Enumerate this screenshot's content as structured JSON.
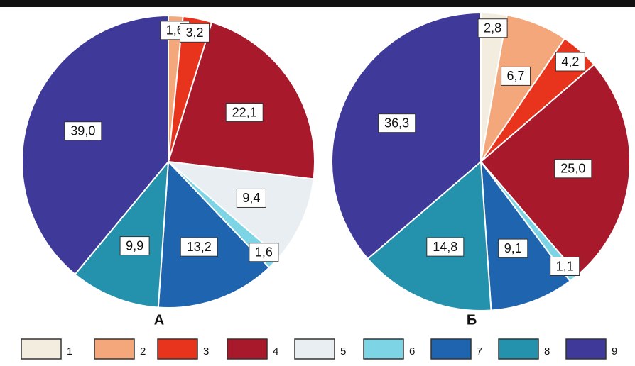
{
  "chart_data": [
    {
      "type": "pie",
      "title": "А",
      "values": [
        1.6,
        3.2,
        22.1,
        9.4,
        1.6,
        13.2,
        9.9,
        39.0
      ],
      "value_labels": [
        "1,6",
        "3,2",
        "22,1",
        "9,4",
        "1,6",
        "13,2",
        "9,9",
        "39,0"
      ],
      "colors": [
        "#f4a77a",
        "#e8341c",
        "#a8192b",
        "#e8eef2",
        "#7dd4e4",
        "#1f64ae",
        "#2592ad",
        "#3f3a9a"
      ]
    },
    {
      "type": "pie",
      "title": "Б",
      "values": [
        2.8,
        6.7,
        4.2,
        25.0,
        1.1,
        9.1,
        14.8,
        36.3
      ],
      "value_labels": [
        "2,8",
        "6,7",
        "4,2",
        "25,0",
        "1,1",
        "9,1",
        "14,8",
        "36,3"
      ],
      "colors": [
        "#f3ede0",
        "#f4a77a",
        "#e8341c",
        "#a8192b",
        "#7dd4e4",
        "#1f64ae",
        "#2592ad",
        "#3f3a9a"
      ]
    }
  ],
  "legend": [
    {
      "label": "1",
      "color": "#f3ede0"
    },
    {
      "label": "2",
      "color": "#f4a77a"
    },
    {
      "label": "3",
      "color": "#e8341c"
    },
    {
      "label": "4",
      "color": "#a8192b"
    },
    {
      "label": "5",
      "color": "#e8eef2"
    },
    {
      "label": "6",
      "color": "#7dd4e4"
    },
    {
      "label": "7",
      "color": "#1f64ae"
    },
    {
      "label": "8",
      "color": "#2592ad"
    },
    {
      "label": "9",
      "color": "#3f3a9a"
    }
  ]
}
